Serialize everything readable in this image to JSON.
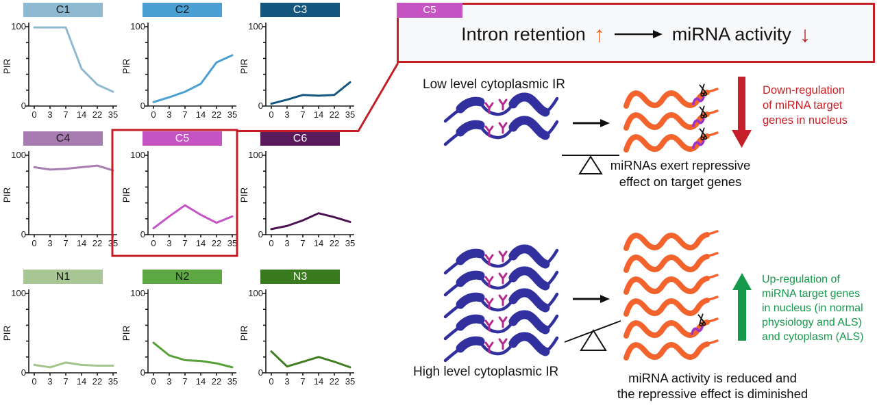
{
  "figure": {
    "banner": {
      "tab_label": "C5",
      "left_text": "Intron retention",
      "up_arrow": "↑",
      "right_text": "miRNA activity",
      "down_arrow": "↓"
    },
    "low_section": {
      "label": "Low level cytoplasmic IR",
      "note_lines": [
        "Down-regulation",
        "of miRNA target",
        "genes in nucleus"
      ],
      "caption_lines": [
        "miRNAs exert repressive",
        "effect on target genes"
      ]
    },
    "high_section": {
      "label": "High level cytoplasmic IR",
      "note_lines": [
        "Up-regulation of",
        "miRNA target genes",
        "in nucleus (in normal",
        "physiology and ALS)",
        "and cytoplasm (ALS)"
      ],
      "caption_lines": [
        "miRNA activity is reduced and",
        "the repressive effect is diminished"
      ]
    },
    "colors": {
      "highlight_red": "#c41e25",
      "note_red": "#cb2026",
      "note_green": "#149a4a",
      "transcript_blue": "#32309e",
      "mirna_magenta": "#b5298e",
      "mrna_orange": "#f2632e",
      "hook_purple": "#9a33cc",
      "banner_tab_magenta": "#c553c1",
      "intron_up_orange": "#f26322",
      "activity_down_red": "#b01f24"
    }
  },
  "chart_data": {
    "type": "line",
    "x_categories": [
      "0",
      "3",
      "7",
      "14",
      "22",
      "35"
    ],
    "xlabel": "",
    "ylabel": "PIR",
    "ylim": [
      0,
      100
    ],
    "y_tick_labels": [
      "0",
      "100"
    ],
    "grid": false,
    "panels": [
      {
        "label": "C1",
        "header_color": "#8fb9d0",
        "header_text_color": "#1a1a1a",
        "line_color": "#8fb9d0",
        "values": [
          99,
          99,
          99,
          47,
          27,
          18
        ],
        "highlight": false
      },
      {
        "label": "C2",
        "header_color": "#4a9fd3",
        "header_text_color": "#1a1a1a",
        "line_color": "#4a9fd3",
        "values": [
          5,
          11,
          18,
          28,
          55,
          64
        ],
        "highlight": false
      },
      {
        "label": "C3",
        "header_color": "#15567f",
        "header_text_color": "#ffffff",
        "line_color": "#15567f",
        "values": [
          3,
          8,
          14,
          13,
          14,
          30
        ],
        "highlight": false
      },
      {
        "label": "C4",
        "header_color": "#a77cb0",
        "header_text_color": "#1a1a1a",
        "line_color": "#a77cb0",
        "values": [
          85,
          82,
          83,
          85,
          87,
          81
        ],
        "highlight": false
      },
      {
        "label": "C5",
        "header_color": "#c653c4",
        "header_text_color": "#ffffff",
        "line_color": "#c653c4",
        "values": [
          8,
          23,
          37,
          25,
          15,
          23
        ],
        "highlight": true
      },
      {
        "label": "C6",
        "header_color": "#5b1a5e",
        "header_text_color": "#ffffff",
        "line_color": "#4b1150",
        "values": [
          7,
          11,
          18,
          27,
          22,
          16
        ],
        "highlight": false
      },
      {
        "label": "N1",
        "header_color": "#a9c795",
        "header_text_color": "#1a1a1a",
        "line_color": "#a3c48c",
        "values": [
          10,
          7,
          13,
          10,
          9,
          9
        ],
        "highlight": false
      },
      {
        "label": "N2",
        "header_color": "#5ea843",
        "header_text_color": "#1a1a1a",
        "line_color": "#55a038",
        "values": [
          38,
          22,
          16,
          15,
          12,
          7
        ],
        "highlight": false
      },
      {
        "label": "N3",
        "header_color": "#3a7a1f",
        "header_text_color": "#ffffff",
        "line_color": "#3f7f22",
        "values": [
          27,
          8,
          14,
          20,
          14,
          7
        ],
        "highlight": false
      }
    ]
  }
}
